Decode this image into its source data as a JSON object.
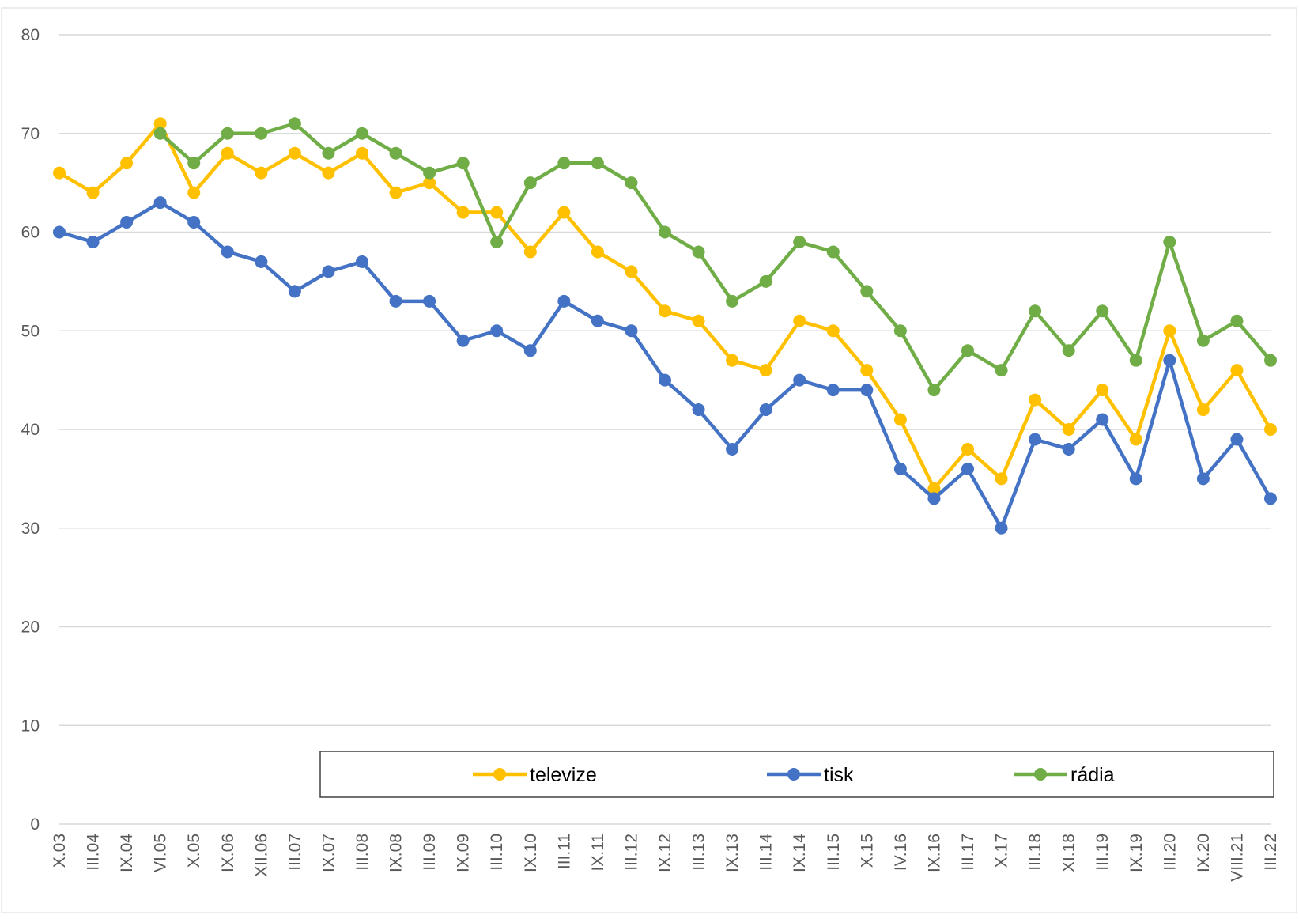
{
  "chart_data": {
    "type": "line",
    "categories": [
      "X.03",
      "III.04",
      "IX.04",
      "VI.05",
      "X.05",
      "IX.06",
      "XII.06",
      "III.07",
      "IX.07",
      "III.08",
      "IX.08",
      "III.09",
      "IX.09",
      "III.10",
      "IX.10",
      "III.11",
      "IX.11",
      "III.12",
      "IX.12",
      "III.13",
      "IX.13",
      "III.14",
      "IX.14",
      "III.15",
      "X.15",
      "IV.16",
      "IX.16",
      "III.17",
      "X.17",
      "III.18",
      "XI.18",
      "III.19",
      "IX.19",
      "III.20",
      "IX.20",
      "VIII.21",
      "III.22"
    ],
    "series": [
      {
        "name": "televize",
        "color": "#ffc000",
        "values": [
          66,
          64,
          67,
          71,
          64,
          68,
          66,
          68,
          66,
          68,
          64,
          65,
          62,
          62,
          58,
          62,
          58,
          56,
          52,
          51,
          47,
          46,
          51,
          50,
          46,
          41,
          34,
          38,
          35,
          43,
          40,
          44,
          39,
          50,
          42,
          46,
          40
        ]
      },
      {
        "name": "tisk",
        "color": "#4472c4",
        "values": [
          60,
          59,
          61,
          63,
          61,
          58,
          57,
          54,
          56,
          57,
          53,
          53,
          49,
          50,
          48,
          53,
          51,
          50,
          45,
          42,
          38,
          42,
          45,
          44,
          44,
          36,
          33,
          36,
          30,
          39,
          38,
          41,
          35,
          47,
          35,
          39,
          33
        ]
      },
      {
        "name": "rádia",
        "color": "#70ad47",
        "values": [
          null,
          null,
          null,
          70,
          67,
          70,
          70,
          71,
          68,
          70,
          68,
          66,
          67,
          59,
          65,
          67,
          67,
          65,
          60,
          58,
          53,
          55,
          59,
          58,
          54,
          50,
          44,
          48,
          46,
          52,
          48,
          52,
          47,
          59,
          49,
          51,
          47
        ]
      }
    ],
    "ylim": [
      0,
      80
    ],
    "yticks": [
      0,
      10,
      20,
      30,
      40,
      50,
      60,
      70,
      80
    ],
    "grid": true,
    "legend": "bottom"
  }
}
